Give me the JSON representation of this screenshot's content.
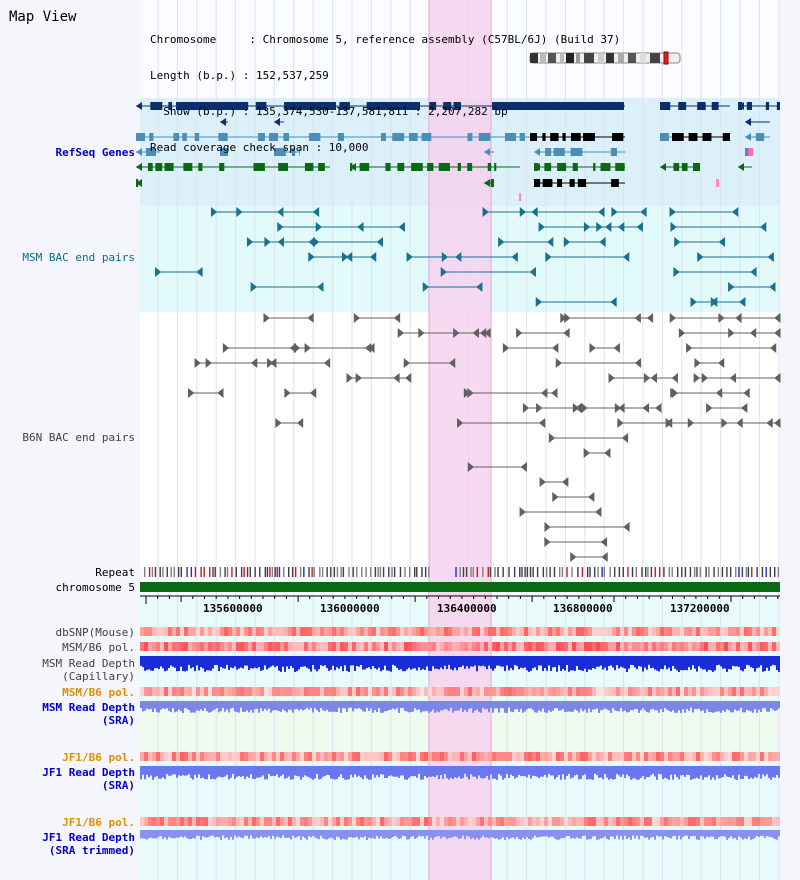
{
  "title": "Map View",
  "info": {
    "chromosome": "Chromosome     : Chromosome 5, reference assembly (C57BL/6J) (Build 37)",
    "length": "Length (b.p.) : 152,537,259",
    "show": "  Show (b.p.) : 135,374,530-137,581,811 : 2,207,282 bp",
    "span": "Read coverage check span : 10,000"
  },
  "tracks": {
    "refseq": "RefSeq Genes",
    "msm_bac": "MSM BAC end pairs",
    "b6n_bac": "B6N BAC end pairs",
    "repeat": "Repeat",
    "chromosome": "chromosome 5",
    "dbsnp": "dbSNP(Mouse)",
    "msm_pol1": "MSM/B6 pol.",
    "msm_depth_cap": "MSM Read Depth\n(Capillary)",
    "msm_pol2": "MSM/B6 pol.",
    "msm_depth_sra": "MSM Read Depth\n(SRA)",
    "jf1_pol1": "JF1/B6 pol.",
    "jf1_depth_sra": "JF1 Read Depth\n(SRA)",
    "jf1_pol2": "JF1/B6 pol.",
    "jf1_depth_trim": "JF1 Read Depth\n(SRA trimmed)"
  },
  "axis_ticks": [
    "135600000",
    "136000000",
    "136400000",
    "136800000",
    "137200000"
  ],
  "colors": {
    "highlight": "#f6d2ee",
    "refseq_bg": "#dcf0fa",
    "msm_bg": "#e2fafa",
    "gene_navy": "#0a2f6b",
    "gene_steel": "#4a8fb8",
    "gene_green": "#0a6a14",
    "bac_teal": "#1a7090",
    "bac_gray": "#606060",
    "chromosome_bar": "#0a6a14"
  },
  "icons": [
    "chromosome-ideogram-icon"
  ]
}
